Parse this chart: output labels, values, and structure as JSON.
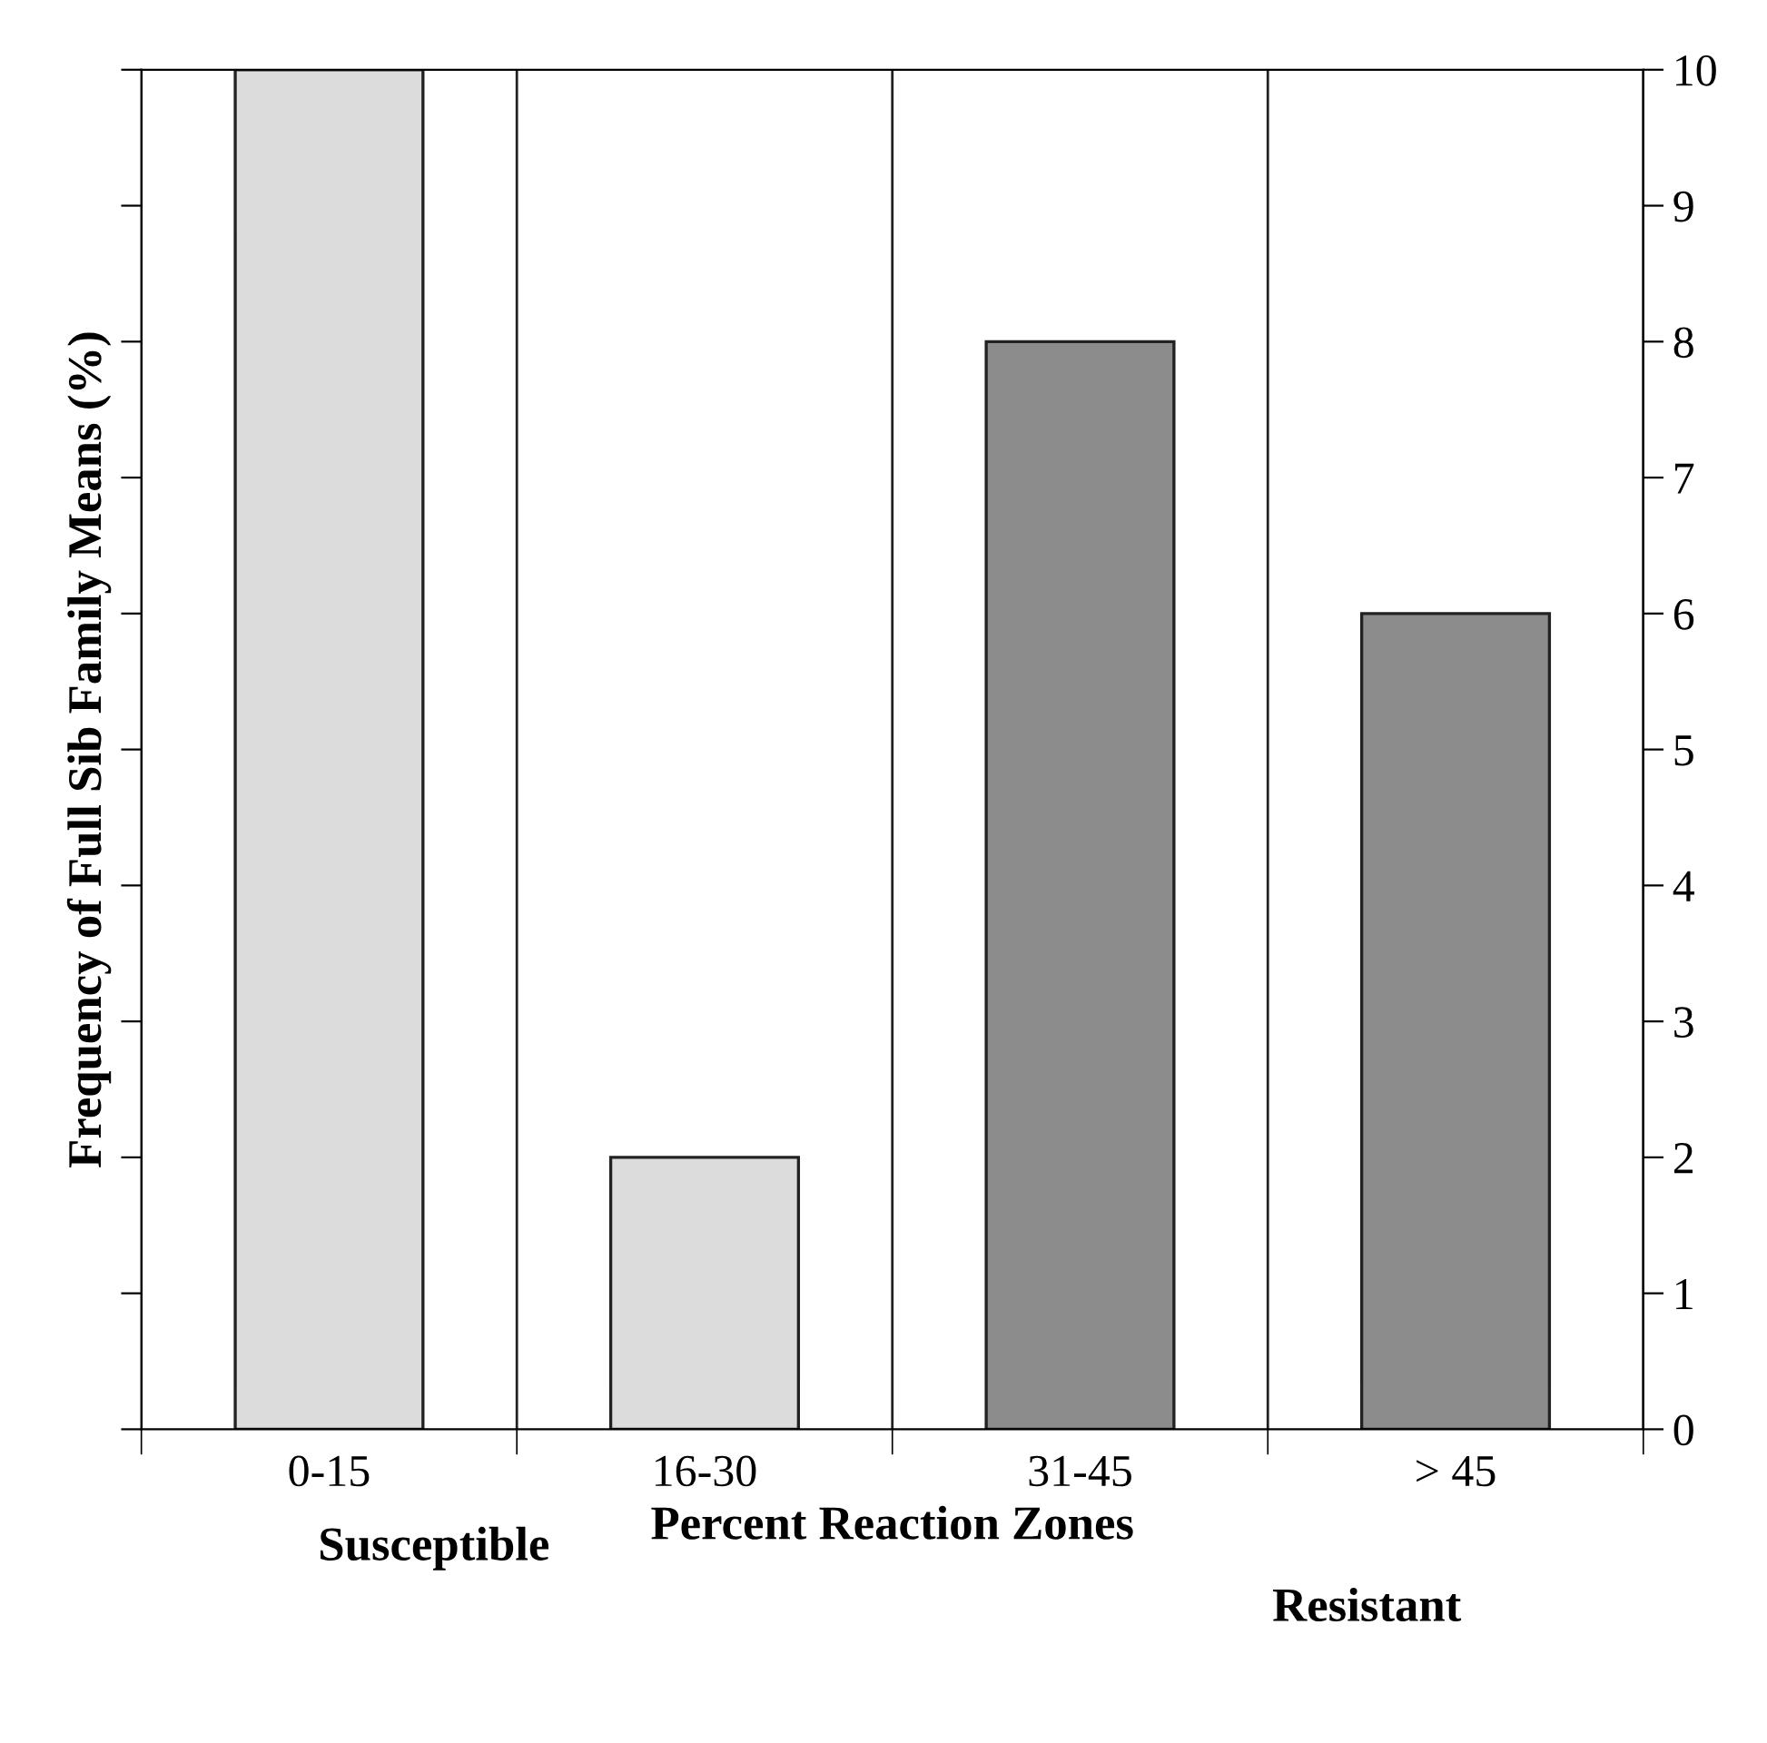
{
  "chart_data": {
    "type": "bar",
    "xlabel": "Percent Reaction Zones",
    "ylabel": "Frequency of Full Sib Family Means (%)",
    "categories": [
      "0-15",
      "16-30",
      "31-45",
      "> 45"
    ],
    "values": [
      10,
      2,
      8,
      6
    ],
    "colors": [
      "#dcdcdc",
      "#dcdcdc",
      "#8c8c8c",
      "#8c8c8c"
    ],
    "ylim": [
      0,
      10
    ],
    "yticks": [
      0,
      1,
      2,
      3,
      4,
      5,
      6,
      7,
      8,
      9,
      10
    ],
    "grid": "x",
    "annotations": [
      "Susceptible",
      "Resistant"
    ]
  }
}
